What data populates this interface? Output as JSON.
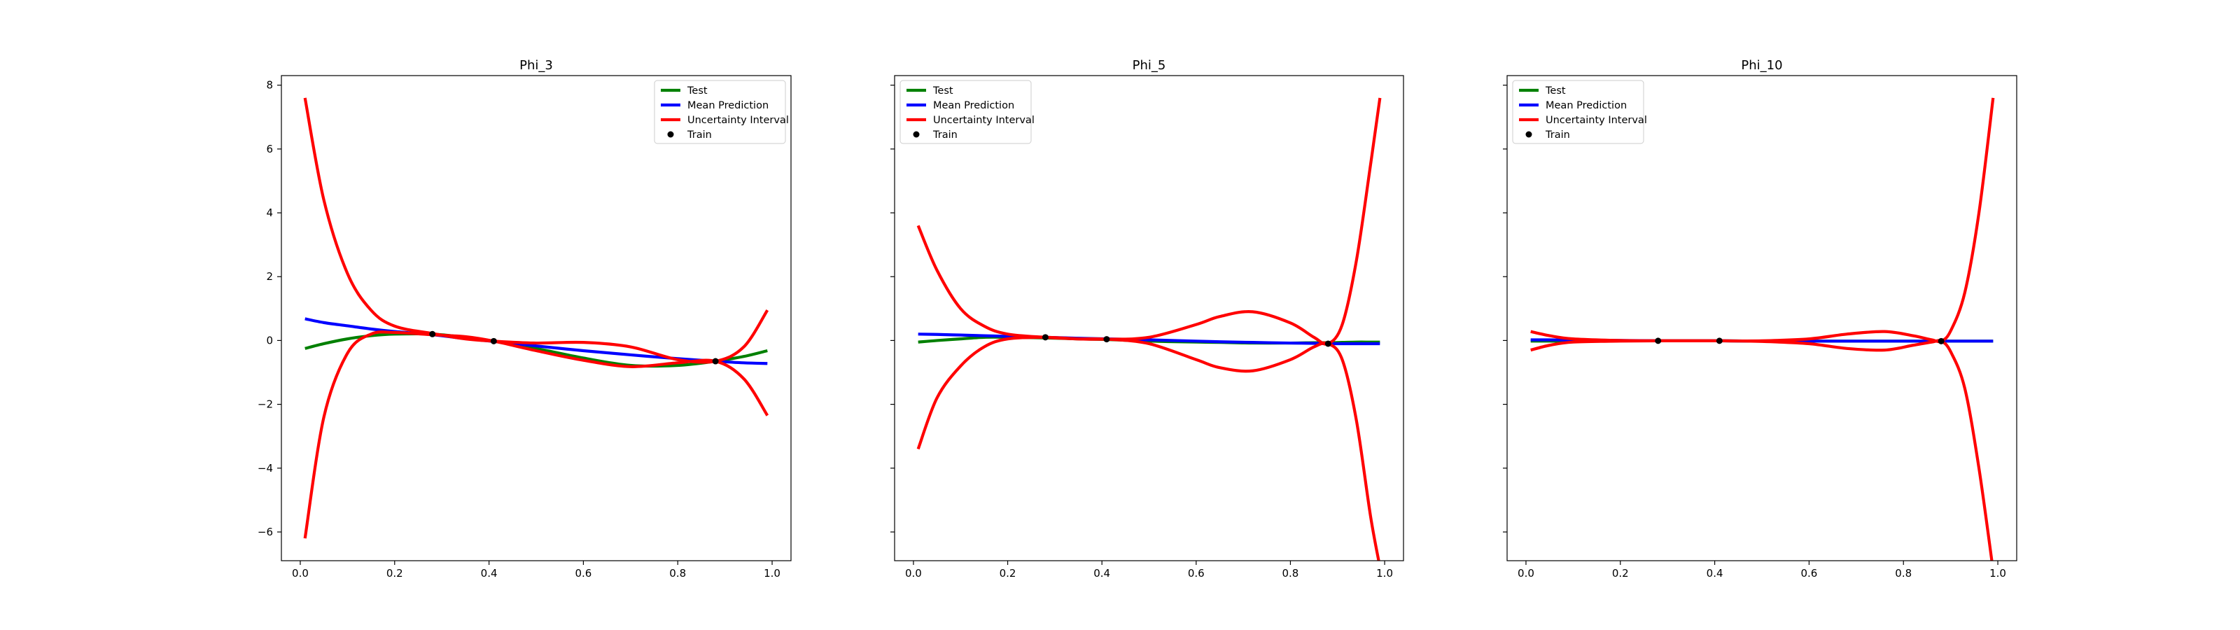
{
  "colors": {
    "test": "#008000",
    "mean": "#0000ff",
    "interval": "#ff0000",
    "train": "#000000"
  },
  "chart_data": [
    {
      "type": "line",
      "title": "Phi_3",
      "xlabel": "",
      "ylabel": "",
      "xlim": [
        -0.04,
        1.04
      ],
      "ylim": [
        -6.9,
        8.3
      ],
      "xticks": [
        "0.0",
        "0.2",
        "0.4",
        "0.6",
        "0.8",
        "1.0"
      ],
      "yticks": [
        "−6",
        "−4",
        "−2",
        "0",
        "2",
        "4",
        "6",
        "8"
      ],
      "show_ytick_labels": true,
      "legend_position": "upper right",
      "legend": [
        "Test",
        "Mean Prediction",
        "Uncertainty Interval",
        "Train"
      ],
      "x": [
        0.01,
        0.05,
        0.1,
        0.15,
        0.2,
        0.28,
        0.35,
        0.41,
        0.5,
        0.6,
        0.7,
        0.8,
        0.88,
        0.94,
        0.99
      ],
      "series": [
        {
          "name": "Test",
          "values": [
            -0.25,
            -0.1,
            0.05,
            0.15,
            0.2,
            0.2,
            0.1,
            -0.02,
            -0.25,
            -0.55,
            -0.78,
            -0.78,
            -0.65,
            -0.5,
            -0.32
          ]
        },
        {
          "name": "Mean Prediction",
          "values": [
            0.68,
            0.56,
            0.46,
            0.36,
            0.28,
            0.18,
            0.06,
            -0.03,
            -0.17,
            -0.32,
            -0.45,
            -0.57,
            -0.65,
            -0.7,
            -0.72
          ]
        },
        {
          "name": "Uncertainty Interval",
          "values": [
            7.6,
            4.4,
            2.1,
            0.95,
            0.45,
            0.22,
            0.05,
            -0.02,
            -0.08,
            -0.06,
            -0.2,
            -0.6,
            -0.65,
            -0.2,
            0.95
          ]
        },
        {
          "name": "Uncertainty Interval",
          "values": [
            -6.2,
            -2.4,
            -0.4,
            0.2,
            0.25,
            0.18,
            0.12,
            -0.02,
            -0.32,
            -0.62,
            -0.82,
            -0.7,
            -0.65,
            -1.2,
            -2.35
          ]
        }
      ],
      "train": {
        "x": [
          0.28,
          0.41,
          0.88
        ],
        "y": [
          0.2,
          -0.02,
          -0.65
        ]
      }
    },
    {
      "type": "line",
      "title": "Phi_5",
      "xlabel": "",
      "ylabel": "",
      "xlim": [
        -0.04,
        1.04
      ],
      "ylim": [
        -6.9,
        8.3
      ],
      "xticks": [
        "0.0",
        "0.2",
        "0.4",
        "0.6",
        "0.8",
        "1.0"
      ],
      "yticks": [
        "",
        "",
        "",
        "",
        "",
        "",
        "",
        ""
      ],
      "show_ytick_labels": false,
      "legend_position": "upper left",
      "legend": [
        "Test",
        "Mean Prediction",
        "Uncertainty Interval",
        "Train"
      ],
      "x": [
        0.01,
        0.05,
        0.1,
        0.15,
        0.2,
        0.28,
        0.35,
        0.41,
        0.5,
        0.6,
        0.65,
        0.72,
        0.8,
        0.85,
        0.88,
        0.91,
        0.94,
        0.97,
        0.99
      ],
      "series": [
        {
          "name": "Test",
          "values": [
            -0.05,
            0.0,
            0.05,
            0.1,
            0.1,
            0.08,
            0.05,
            0.03,
            -0.02,
            -0.05,
            -0.06,
            -0.08,
            -0.08,
            -0.07,
            -0.07,
            -0.06,
            -0.05,
            -0.05,
            -0.05
          ]
        },
        {
          "name": "Mean Prediction",
          "values": [
            0.2,
            0.19,
            0.17,
            0.15,
            0.13,
            0.1,
            0.07,
            0.05,
            0.02,
            -0.02,
            -0.04,
            -0.06,
            -0.08,
            -0.09,
            -0.1,
            -0.1,
            -0.1,
            -0.1,
            -0.1
          ]
        },
        {
          "name": "Uncertainty Interval",
          "values": [
            3.6,
            2.2,
            1.0,
            0.45,
            0.2,
            0.1,
            0.05,
            0.04,
            0.1,
            0.5,
            0.75,
            0.9,
            0.55,
            0.1,
            -0.1,
            0.5,
            2.5,
            5.5,
            7.6
          ]
        },
        {
          "name": "Uncertainty Interval",
          "values": [
            -3.4,
            -1.8,
            -0.8,
            -0.2,
            0.05,
            0.1,
            0.05,
            0.04,
            -0.1,
            -0.6,
            -0.85,
            -0.95,
            -0.6,
            -0.2,
            -0.1,
            -0.6,
            -2.5,
            -5.5,
            -7.1
          ]
        }
      ],
      "train": {
        "x": [
          0.28,
          0.41,
          0.88
        ],
        "y": [
          0.1,
          0.04,
          -0.1
        ]
      }
    },
    {
      "type": "line",
      "title": "Phi_10",
      "xlabel": "",
      "ylabel": "",
      "xlim": [
        -0.04,
        1.04
      ],
      "ylim": [
        -6.9,
        8.3
      ],
      "xticks": [
        "0.0",
        "0.2",
        "0.4",
        "0.6",
        "0.8",
        "1.0"
      ],
      "yticks": [
        "",
        "",
        "",
        "",
        "",
        "",
        "",
        ""
      ],
      "show_ytick_labels": false,
      "legend_position": "upper left",
      "legend": [
        "Test",
        "Mean Prediction",
        "Uncertainty Interval",
        "Train"
      ],
      "x": [
        0.01,
        0.05,
        0.1,
        0.2,
        0.28,
        0.35,
        0.41,
        0.5,
        0.6,
        0.68,
        0.76,
        0.82,
        0.86,
        0.88,
        0.9,
        0.93,
        0.96,
        0.99
      ],
      "series": [
        {
          "name": "Test",
          "values": [
            -0.02,
            -0.02,
            -0.02,
            -0.01,
            -0.01,
            -0.01,
            -0.01,
            -0.02,
            -0.02,
            -0.02,
            -0.02,
            -0.02,
            -0.02,
            -0.02,
            -0.02,
            -0.02,
            -0.02,
            -0.02
          ]
        },
        {
          "name": "Mean Prediction",
          "values": [
            0.02,
            0.02,
            0.01,
            0.0,
            -0.01,
            -0.01,
            -0.01,
            -0.02,
            -0.02,
            -0.02,
            -0.02,
            -0.02,
            -0.02,
            -0.02,
            -0.02,
            -0.02,
            -0.02,
            -0.02
          ]
        },
        {
          "name": "Uncertainty Interval",
          "values": [
            0.28,
            0.15,
            0.05,
            0.0,
            -0.01,
            -0.01,
            -0.01,
            -0.01,
            0.05,
            0.2,
            0.28,
            0.15,
            0.02,
            -0.02,
            0.3,
            1.5,
            4.0,
            7.6
          ]
        },
        {
          "name": "Uncertainty Interval",
          "values": [
            -0.3,
            -0.15,
            -0.05,
            -0.02,
            -0.01,
            -0.01,
            -0.01,
            -0.03,
            -0.1,
            -0.25,
            -0.3,
            -0.15,
            -0.05,
            -0.02,
            -0.35,
            -1.5,
            -4.0,
            -7.2
          ]
        }
      ],
      "train": {
        "x": [
          0.28,
          0.41,
          0.88
        ],
        "y": [
          -0.01,
          -0.01,
          -0.02
        ]
      }
    }
  ]
}
